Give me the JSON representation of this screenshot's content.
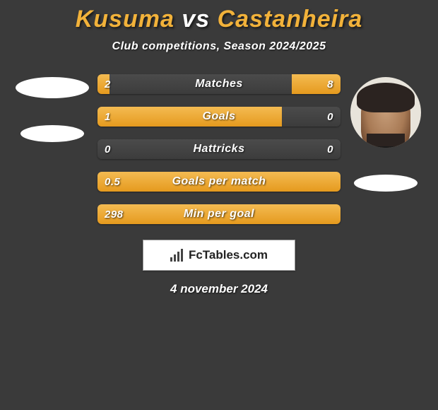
{
  "title": {
    "left_name": "Kusuma",
    "vs": "vs",
    "right_name": "Castanheira",
    "left_color": "#f2b23a",
    "vs_color": "#ffffff",
    "right_color": "#f2b23a"
  },
  "subtitle": "Club competitions, Season 2024/2025",
  "bar_style": {
    "fill_color_top": "#f4bb52",
    "fill_color_bottom": "#e59a1e",
    "track_color_top": "#4b4b4b",
    "track_color_bottom": "#3c3c3c",
    "height": 28,
    "border_radius": 6,
    "label_fontsize": 15,
    "center_fontsize": 16,
    "label_color": "#ffffff"
  },
  "stats": [
    {
      "label": "Matches",
      "left_value": "2",
      "right_value": "8",
      "left_pct": 5,
      "right_pct": 20
    },
    {
      "label": "Goals",
      "left_value": "1",
      "right_value": "0",
      "left_pct": 76,
      "right_pct": 0
    },
    {
      "label": "Hattricks",
      "left_value": "0",
      "right_value": "0",
      "left_pct": 0,
      "right_pct": 0
    },
    {
      "label": "Goals per match",
      "left_value": "0.5",
      "right_value": "",
      "left_pct": 100,
      "right_pct": 0
    },
    {
      "label": "Min per goal",
      "left_value": "298",
      "right_value": "",
      "left_pct": 100,
      "right_pct": 0
    }
  ],
  "brand": "FcTables.com",
  "date": "4 november 2024",
  "colors": {
    "background": "#3a3a3a",
    "avatar_bg": "#e8e4db",
    "ellipse": "#ffffff"
  }
}
